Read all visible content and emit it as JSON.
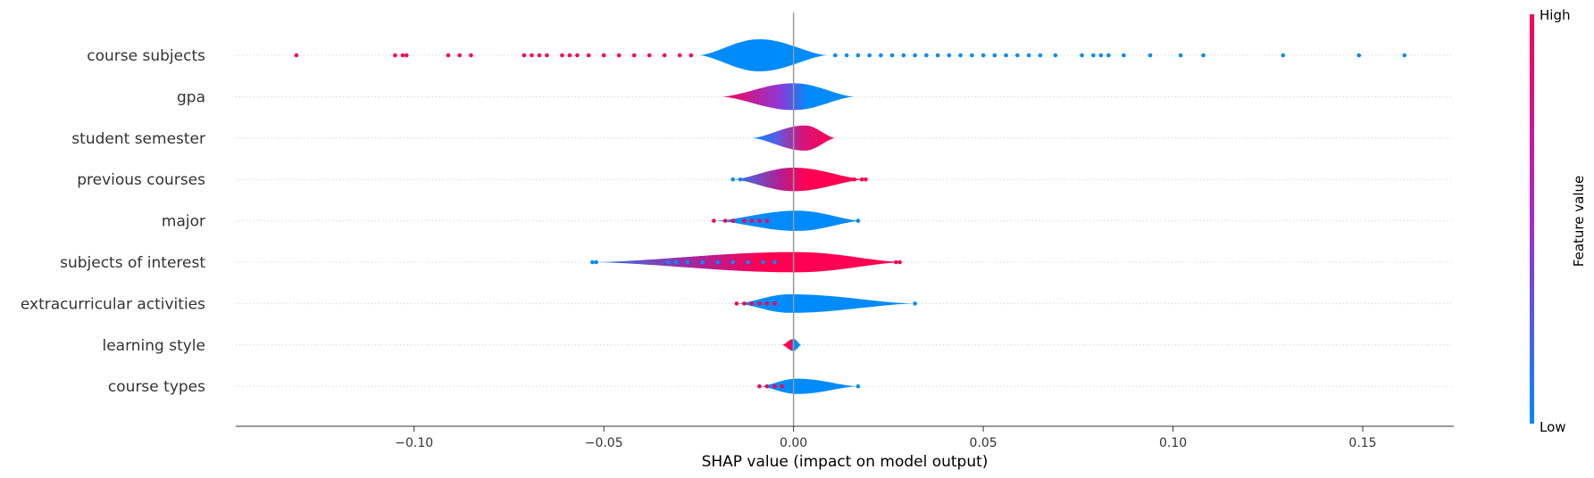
{
  "chart_data": {
    "type": "violin",
    "xlabel": "SHAP value (impact on model output)",
    "xlim": [
      -0.147,
      0.174
    ],
    "xticks": [
      -0.1,
      -0.05,
      0.0,
      0.05,
      0.1,
      0.15
    ],
    "xtick_labels": [
      "−0.10",
      "−0.05",
      "0.00",
      "0.05",
      "0.10",
      "0.15"
    ],
    "colorbar": {
      "label": "Feature value",
      "high_label": "High",
      "low_label": "Low",
      "high_color": "#ff0052",
      "low_color": "#008bfb"
    },
    "features": [
      {
        "name": "course subjects",
        "extent": [
          -0.025,
          0.009
        ],
        "center": -0.009,
        "max_width": 0.032,
        "color": "mixed_low_right",
        "points": [
          {
            "x": -0.131,
            "v": "high"
          },
          {
            "x": -0.105,
            "v": "high"
          },
          {
            "x": -0.103,
            "v": "high"
          },
          {
            "x": -0.102,
            "v": "high"
          },
          {
            "x": -0.091,
            "v": "high"
          },
          {
            "x": -0.088,
            "v": "high"
          },
          {
            "x": -0.085,
            "v": "high"
          },
          {
            "x": -0.071,
            "v": "high"
          },
          {
            "x": -0.069,
            "v": "high"
          },
          {
            "x": -0.067,
            "v": "high"
          },
          {
            "x": -0.065,
            "v": "high"
          },
          {
            "x": -0.061,
            "v": "high"
          },
          {
            "x": -0.059,
            "v": "high"
          },
          {
            "x": -0.057,
            "v": "high"
          },
          {
            "x": -0.054,
            "v": "high"
          },
          {
            "x": -0.05,
            "v": "high"
          },
          {
            "x": -0.046,
            "v": "high"
          },
          {
            "x": -0.042,
            "v": "high"
          },
          {
            "x": -0.038,
            "v": "high"
          },
          {
            "x": -0.034,
            "v": "high"
          },
          {
            "x": -0.03,
            "v": "high"
          },
          {
            "x": -0.027,
            "v": "high"
          },
          {
            "x": 0.011,
            "v": "low"
          },
          {
            "x": 0.014,
            "v": "low"
          },
          {
            "x": 0.017,
            "v": "low"
          },
          {
            "x": 0.02,
            "v": "low"
          },
          {
            "x": 0.023,
            "v": "low"
          },
          {
            "x": 0.026,
            "v": "low"
          },
          {
            "x": 0.029,
            "v": "low"
          },
          {
            "x": 0.032,
            "v": "low"
          },
          {
            "x": 0.035,
            "v": "low"
          },
          {
            "x": 0.038,
            "v": "low"
          },
          {
            "x": 0.041,
            "v": "low"
          },
          {
            "x": 0.044,
            "v": "low"
          },
          {
            "x": 0.047,
            "v": "low"
          },
          {
            "x": 0.05,
            "v": "low"
          },
          {
            "x": 0.053,
            "v": "low"
          },
          {
            "x": 0.056,
            "v": "low"
          },
          {
            "x": 0.059,
            "v": "low"
          },
          {
            "x": 0.062,
            "v": "low"
          },
          {
            "x": 0.065,
            "v": "low"
          },
          {
            "x": 0.069,
            "v": "low"
          },
          {
            "x": 0.076,
            "v": "low"
          },
          {
            "x": 0.079,
            "v": "low"
          },
          {
            "x": 0.081,
            "v": "low"
          },
          {
            "x": 0.083,
            "v": "low"
          },
          {
            "x": 0.087,
            "v": "low"
          },
          {
            "x": 0.094,
            "v": "low"
          },
          {
            "x": 0.102,
            "v": "low"
          },
          {
            "x": 0.108,
            "v": "low"
          },
          {
            "x": 0.129,
            "v": "low"
          },
          {
            "x": 0.149,
            "v": "low"
          },
          {
            "x": 0.161,
            "v": "low"
          }
        ]
      },
      {
        "name": "gpa",
        "extent": [
          -0.019,
          0.016
        ],
        "center": 0.0,
        "max_width": 0.024,
        "color": "gradient_high_left",
        "points": []
      },
      {
        "name": "student semester",
        "extent": [
          -0.011,
          0.011
        ],
        "center": 0.003,
        "max_width": 0.022,
        "color": "gradient_low_left",
        "points": []
      },
      {
        "name": "previous courses",
        "extent": [
          -0.016,
          0.019
        ],
        "center": 0.0,
        "max_width": 0.02,
        "color": "mixed_high_center",
        "points": [
          {
            "x": -0.016,
            "v": "low"
          },
          {
            "x": -0.014,
            "v": "low"
          },
          {
            "x": 0.014,
            "v": "high"
          },
          {
            "x": 0.016,
            "v": "high"
          },
          {
            "x": 0.018,
            "v": "high"
          },
          {
            "x": 0.019,
            "v": "high"
          }
        ]
      },
      {
        "name": "major",
        "extent": [
          -0.021,
          0.018
        ],
        "center": 0.001,
        "max_width": 0.016,
        "color": "mixed_low_center",
        "points": [
          {
            "x": -0.021,
            "v": "high"
          },
          {
            "x": -0.018,
            "v": "high"
          },
          {
            "x": -0.016,
            "v": "high"
          },
          {
            "x": -0.013,
            "v": "high"
          },
          {
            "x": -0.011,
            "v": "high"
          },
          {
            "x": -0.009,
            "v": "high"
          },
          {
            "x": -0.007,
            "v": "high"
          },
          {
            "x": 0.006,
            "v": "low"
          },
          {
            "x": 0.008,
            "v": "low"
          },
          {
            "x": 0.01,
            "v": "low"
          },
          {
            "x": 0.012,
            "v": "low"
          },
          {
            "x": 0.014,
            "v": "low"
          },
          {
            "x": 0.017,
            "v": "low"
          }
        ]
      },
      {
        "name": "subjects of interest",
        "extent": [
          -0.053,
          0.029
        ],
        "center": 0.001,
        "max_width": 0.016,
        "color": "mixed_high_center",
        "points": [
          {
            "x": -0.053,
            "v": "low"
          },
          {
            "x": -0.052,
            "v": "low"
          },
          {
            "x": -0.033,
            "v": "low"
          },
          {
            "x": -0.031,
            "v": "low"
          },
          {
            "x": -0.028,
            "v": "low"
          },
          {
            "x": -0.024,
            "v": "low"
          },
          {
            "x": -0.02,
            "v": "low"
          },
          {
            "x": -0.016,
            "v": "low"
          },
          {
            "x": -0.012,
            "v": "low"
          },
          {
            "x": -0.008,
            "v": "low"
          },
          {
            "x": -0.005,
            "v": "low"
          },
          {
            "x": 0.006,
            "v": "high"
          },
          {
            "x": 0.009,
            "v": "high"
          },
          {
            "x": 0.012,
            "v": "high"
          },
          {
            "x": 0.015,
            "v": "high"
          },
          {
            "x": 0.018,
            "v": "high"
          },
          {
            "x": 0.02,
            "v": "high"
          },
          {
            "x": 0.022,
            "v": "high"
          },
          {
            "x": 0.027,
            "v": "high"
          },
          {
            "x": 0.028,
            "v": "high"
          }
        ]
      },
      {
        "name": "extracurricular activities",
        "extent": [
          -0.015,
          0.032
        ],
        "center": -0.001,
        "max_width": 0.014,
        "color": "mixed_low_center",
        "points": [
          {
            "x": -0.015,
            "v": "high"
          },
          {
            "x": -0.013,
            "v": "high"
          },
          {
            "x": -0.011,
            "v": "high"
          },
          {
            "x": -0.009,
            "v": "high"
          },
          {
            "x": -0.007,
            "v": "high"
          },
          {
            "x": -0.005,
            "v": "high"
          },
          {
            "x": 0.004,
            "v": "low"
          },
          {
            "x": 0.006,
            "v": "low"
          },
          {
            "x": 0.008,
            "v": "low"
          },
          {
            "x": 0.01,
            "v": "low"
          },
          {
            "x": 0.012,
            "v": "low"
          },
          {
            "x": 0.014,
            "v": "low"
          },
          {
            "x": 0.032,
            "v": "low"
          }
        ]
      },
      {
        "name": "learning style",
        "extent": [
          -0.003,
          0.002
        ],
        "center": 0.0,
        "max_width": 0.006,
        "color": "split_high_low",
        "points": []
      },
      {
        "name": "course types",
        "extent": [
          -0.009,
          0.017
        ],
        "center": 0.001,
        "max_width": 0.01,
        "color": "mixed_low_center",
        "points": [
          {
            "x": -0.009,
            "v": "high"
          },
          {
            "x": -0.007,
            "v": "high"
          },
          {
            "x": -0.005,
            "v": "high"
          },
          {
            "x": -0.003,
            "v": "high"
          },
          {
            "x": 0.003,
            "v": "low"
          },
          {
            "x": 0.005,
            "v": "low"
          },
          {
            "x": 0.007,
            "v": "low"
          },
          {
            "x": 0.01,
            "v": "low"
          },
          {
            "x": 0.017,
            "v": "low"
          }
        ]
      }
    ]
  }
}
